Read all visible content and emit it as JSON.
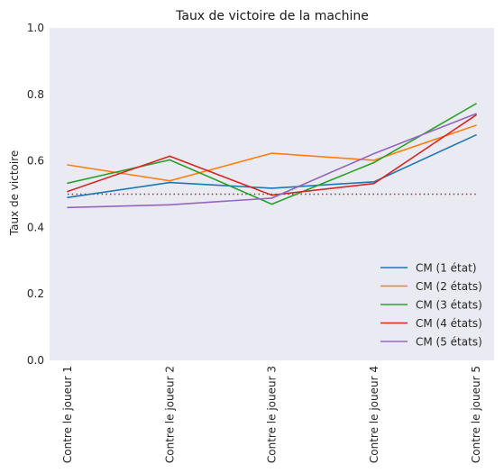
{
  "chart_data": {
    "type": "line",
    "title": "Taux de victoire de la machine",
    "xlabel": "",
    "ylabel": "Taux de victoire",
    "categories": [
      "Contre le joueur 1",
      "Contre le joueur 2",
      "Contre le joueur 3",
      "Contre le joueur 4",
      "Contre le joueur 5"
    ],
    "ylim": [
      0,
      1.0
    ],
    "yticks": [
      0.0,
      0.2,
      0.4,
      0.6,
      0.8,
      1.0
    ],
    "ytick_labels": [
      "0.0",
      "0.2",
      "0.4",
      "0.6",
      "0.8",
      "1.0"
    ],
    "grid": false,
    "background": "#eaeaf2",
    "legend_position": "lower-right",
    "series": [
      {
        "name": "CM (1 état)",
        "color": "#1f77b4",
        "values": [
          0.49,
          0.535,
          0.518,
          0.537,
          0.678
        ]
      },
      {
        "name": "CM (2 états)",
        "color": "#ff7f0e",
        "values": [
          0.588,
          0.54,
          0.623,
          0.602,
          0.707
        ]
      },
      {
        "name": "CM (3 états)",
        "color": "#2ca02c",
        "values": [
          0.533,
          0.603,
          0.47,
          0.595,
          0.772
        ]
      },
      {
        "name": "CM (4 états)",
        "color": "#d62728",
        "values": [
          0.508,
          0.614,
          0.497,
          0.532,
          0.738
        ]
      },
      {
        "name": "CM (5 états)",
        "color": "#9467bd",
        "values": [
          0.46,
          0.468,
          0.488,
          0.622,
          0.742
        ]
      }
    ],
    "reference_line": {
      "value": 0.5,
      "color": "#8b3a3a",
      "style": "dotted"
    }
  }
}
